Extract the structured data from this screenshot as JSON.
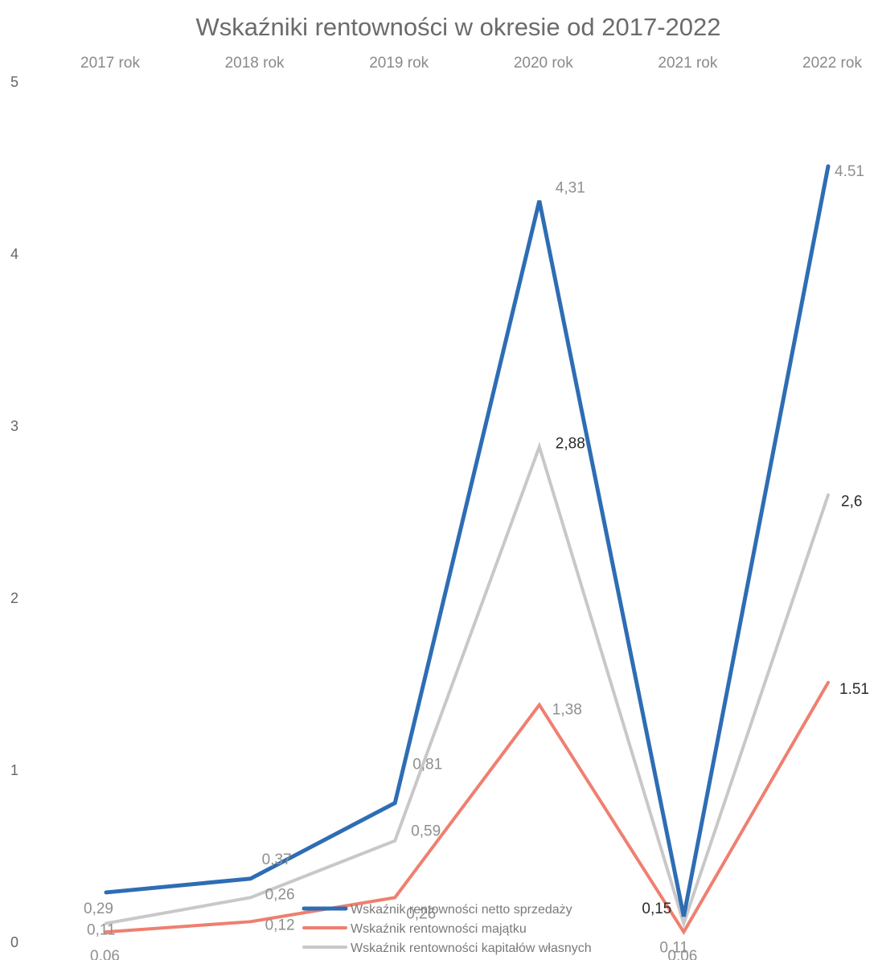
{
  "chart_data": {
    "type": "line",
    "title": "Wskaźniki rentowności w okresie od 2017-2022",
    "categories": [
      "2017 rok",
      "2018 rok",
      "2019 rok",
      "2020 rok",
      "2021 rok",
      "2022 rok"
    ],
    "ylim": [
      0,
      5
    ],
    "yticks": [
      "0",
      "1",
      "2",
      "3",
      "4",
      "5"
    ],
    "grid": false,
    "legend_position": "bottom",
    "series": [
      {
        "name": "Wskaźnik rentowności netto sprzedaży",
        "color": "#2e6db4",
        "values": [
          0.29,
          0.37,
          0.81,
          4.31,
          0.15,
          4.51
        ],
        "labels": [
          "0,29",
          "0,37",
          "0,81",
          "4,31",
          "0,15",
          "4.51"
        ]
      },
      {
        "name": "Wskaźnik rentowności majątku",
        "color": "#ef7f70",
        "values": [
          0.06,
          0.12,
          0.26,
          1.38,
          0.06,
          1.51
        ],
        "labels": [
          "0,06",
          "0,12",
          "0,26",
          "1,38",
          "0,06",
          "1.51"
        ]
      },
      {
        "name": "Wskaźnik rentowności kapitałów własnych",
        "color": "#c8c8c8",
        "values": [
          0.11,
          0.26,
          0.59,
          2.88,
          0.11,
          2.6
        ],
        "labels": [
          "0,11",
          "0,26",
          "0,59",
          "2,88",
          "0.11",
          "2,6"
        ]
      }
    ]
  }
}
